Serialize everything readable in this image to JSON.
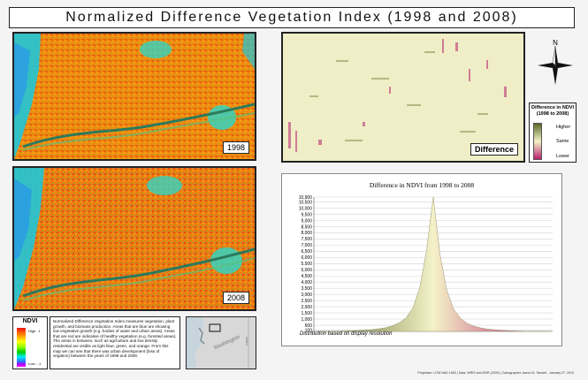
{
  "title": "Normalized Difference Vegetation Index (1998 and 2008)",
  "panels": {
    "map_1998_label": "1998",
    "map_2008_label": "2008",
    "difference_label": "Difference"
  },
  "north_arrow": {
    "label": "N"
  },
  "difference_legend": {
    "title": "Difference in NDVI (1998 to 2008)",
    "higher": "Higher",
    "same": "Same",
    "lower": "Lower",
    "colors": {
      "higher": "#5b6a28",
      "same": "#f4f2c8",
      "lower": "#b8206e"
    }
  },
  "ndvi_legend": {
    "title": "NDVI",
    "high": "High : 1",
    "low": "Low : -1"
  },
  "description": "Normalized Difference Vegetation Index measures vegetation, plant growth, and biomass production. Areas that are blue are showing low vegetative growth (e.g. bodies of water and urban areas). Areas that are red are indicative of healthy vegetation (e.g. forested areas). The areas in between, such as agriculture and low density residential are visible as light blue, green, and orange. From this map we can see that there was urban development (loss of vegation) between the years of 1998 and 2008.",
  "inset": {
    "state_label": "Washington",
    "country_label": "Idaho"
  },
  "credits": "Projection: UTM NAD 1983 | Data: WRIS and DNR (2009) | Cartographer: Aaron M. Tamarit - January 27, 2010",
  "chart_data": {
    "type": "area",
    "title": "Difference in NDVI from 1998 to 2008",
    "note": "Distribution based on display resolution",
    "ylim": [
      0,
      10900
    ],
    "yticks": [
      100,
      500,
      1000,
      1500,
      2000,
      2500,
      3000,
      3500,
      4000,
      4500,
      5000,
      5500,
      6000,
      6500,
      7000,
      7500,
      8000,
      8500,
      9000,
      9500,
      10000,
      10500,
      10900
    ],
    "ytick_labels": [
      "100",
      "500",
      "1,000",
      "1,500",
      "2,000",
      "2,500",
      "3,000",
      "3,500",
      "4,000",
      "4,500",
      "5,000",
      "5,500",
      "6,000",
      "6,500",
      "7,000",
      "7,500",
      "8,000",
      "8,500",
      "9,000",
      "9,500",
      "10,000",
      "10,500",
      "10,900"
    ],
    "grid": true,
    "series": [
      {
        "values": [
          0,
          5,
          10,
          20,
          35,
          55,
          80,
          110,
          150,
          210,
          300,
          450,
          700,
          1100,
          1900,
          3500,
          6500,
          10900,
          6200,
          3300,
          1800,
          1050,
          650,
          420,
          280,
          190,
          130,
          90,
          60,
          40,
          25,
          15,
          8,
          4,
          0
        ]
      }
    ]
  }
}
